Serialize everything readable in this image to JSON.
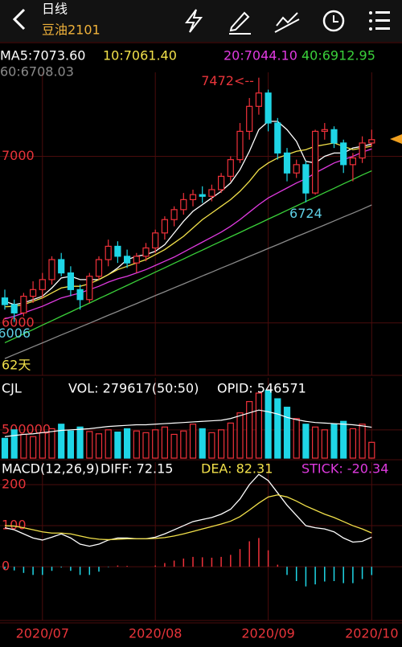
{
  "header": {
    "period": "日线",
    "symbol": "豆油2101"
  },
  "chart_data": [
    {
      "type": "candlestick",
      "categories": [
        null,
        null,
        null,
        null,
        "2020/07",
        null,
        null,
        null,
        null,
        null,
        null,
        null,
        null,
        null,
        null,
        null,
        "2020/08",
        null,
        null,
        null,
        null,
        null,
        null,
        null,
        null,
        null,
        null,
        null,
        "2020/09",
        null,
        null,
        null,
        null,
        null,
        null,
        null,
        null,
        null,
        null,
        "2020/10"
      ],
      "open": [
        6150,
        6110,
        6060,
        6160,
        6200,
        6260,
        6380,
        6300,
        6200,
        6140,
        6280,
        6380,
        6460,
        6400,
        6360,
        6400,
        6450,
        6540,
        6620,
        6680,
        6740,
        6770,
        6760,
        6800,
        6880,
        6980,
        7150,
        7300,
        7380,
        7200,
        7020,
        6900,
        6950,
        6780,
        7150,
        7160,
        7080,
        6950,
        6990,
        7080
      ],
      "high": [
        6200,
        6140,
        6180,
        6250,
        6300,
        6400,
        6420,
        6340,
        6230,
        6300,
        6400,
        6500,
        6490,
        6440,
        6420,
        6480,
        6560,
        6640,
        6700,
        6780,
        6800,
        6820,
        6830,
        6900,
        7000,
        7200,
        7350,
        7472,
        7400,
        7230,
        7050,
        6980,
        6970,
        7160,
        7200,
        7180,
        7100,
        7020,
        7120,
        7160
      ],
      "low": [
        6080,
        6006,
        6040,
        6120,
        6150,
        6230,
        6280,
        6160,
        6080,
        6120,
        6260,
        6340,
        6360,
        6330,
        6300,
        6370,
        6420,
        6500,
        6580,
        6650,
        6700,
        6720,
        6730,
        6780,
        6850,
        6960,
        7100,
        7250,
        7150,
        6980,
        6850,
        6870,
        6724,
        6770,
        7100,
        7050,
        6900,
        6850,
        6960,
        7060
      ],
      "close": [
        6110,
        6060,
        6160,
        6200,
        6260,
        6380,
        6300,
        6200,
        6140,
        6280,
        6380,
        6460,
        6400,
        6360,
        6400,
        6450,
        6540,
        6620,
        6680,
        6740,
        6770,
        6760,
        6800,
        6880,
        6980,
        7150,
        7300,
        7380,
        7200,
        7020,
        6900,
        6950,
        6780,
        7150,
        7160,
        7080,
        6950,
        6990,
        7080,
        7100
      ],
      "high_labels": [
        null,
        null,
        null,
        null,
        null,
        null,
        null,
        null,
        null,
        null,
        null,
        null,
        null,
        null,
        null,
        null,
        null,
        null,
        null,
        null,
        null,
        null,
        null,
        null,
        null,
        null,
        null,
        "7472<--",
        null,
        null,
        null,
        null,
        null,
        null,
        null,
        null,
        null,
        null,
        null,
        null
      ],
      "low_labels": [
        null,
        "6006",
        null,
        null,
        null,
        null,
        null,
        null,
        null,
        null,
        null,
        null,
        null,
        null,
        null,
        null,
        null,
        null,
        null,
        null,
        null,
        null,
        null,
        null,
        null,
        null,
        null,
        null,
        null,
        null,
        null,
        null,
        "6724",
        null,
        null,
        null,
        null,
        null,
        null,
        null
      ],
      "up_color": "#f0313a",
      "down_color": "#1fd6e6",
      "ylim": [
        5695,
        7480
      ],
      "yticks": [
        6000,
        7000
      ],
      "period_label": "62天",
      "series": [
        {
          "name": "MA5:7073.60",
          "color": "#ffffff",
          "values": [
            6130,
            6110,
            6120,
            6140,
            6160,
            6210,
            6270,
            6280,
            6260,
            6260,
            6260,
            6290,
            6330,
            6380,
            6400,
            6410,
            6430,
            6470,
            6540,
            6610,
            6670,
            6710,
            6750,
            6790,
            6840,
            6920,
            7030,
            7160,
            7210,
            7210,
            7160,
            7090,
            6970,
            6960,
            7000,
            7020,
            7020,
            7050,
            7060,
            7073.6
          ]
        },
        {
          "name": "10:7061.40",
          "color": "#f2e14a",
          "values": [
            6097,
            6100,
            6110,
            6130,
            6150,
            6180,
            6210,
            6220,
            6220,
            6235,
            6260,
            6290,
            6320,
            6340,
            6360,
            6380,
            6410,
            6440,
            6480,
            6520,
            6570,
            6620,
            6660,
            6700,
            6740,
            6790,
            6850,
            6920,
            6960,
            6990,
            7010,
            7030,
            7040,
            7060,
            7070,
            7080,
            7060,
            7040,
            7050,
            7061.4
          ]
        },
        {
          "name": "20:7044.10",
          "color": "#e03ae0",
          "values": [
            6025,
            6040,
            6060,
            6080,
            6100,
            6125,
            6150,
            6165,
            6180,
            6200,
            6220,
            6245,
            6265,
            6280,
            6300,
            6320,
            6345,
            6370,
            6395,
            6425,
            6455,
            6485,
            6515,
            6545,
            6580,
            6620,
            6665,
            6710,
            6750,
            6780,
            6810,
            6840,
            6865,
            6900,
            6930,
            6960,
            6980,
            7000,
            7025,
            7044.1
          ]
        },
        {
          "name": "40:6912.95",
          "color": "#3ad13a",
          "values": [
            5881,
            5907,
            5934,
            5960,
            5987,
            6013,
            6040,
            6066,
            6093,
            6119,
            6146,
            6172,
            6199,
            6225,
            6252,
            6278,
            6305,
            6331,
            6358,
            6384,
            6411,
            6437,
            6464,
            6490,
            6517,
            6543,
            6570,
            6596,
            6623,
            6649,
            6676,
            6702,
            6729,
            6755,
            6782,
            6808,
            6835,
            6861,
            6888,
            6912.95
          ]
        },
        {
          "name": "60:6708.03",
          "color": "#8a8a8a",
          "values": [
            5786,
            5810,
            5833,
            5857,
            5880,
            5904,
            5928,
            5951,
            5975,
            5998,
            6022,
            6046,
            6069,
            6093,
            6116,
            6140,
            6164,
            6187,
            6211,
            6234,
            6258,
            6282,
            6305,
            6329,
            6352,
            6376,
            6400,
            6423,
            6447,
            6470,
            6494,
            6518,
            6541,
            6565,
            6588,
            6612,
            6636,
            6659,
            6683,
            6708.03
          ]
        }
      ]
    },
    {
      "type": "bar",
      "title": "CJL",
      "ylim": [
        0,
        1350000
      ],
      "yticks": [
        500000
      ],
      "series": [
        {
          "name": "VOL: 279617(50:50)",
          "type": "bar",
          "color": "#ffffff",
          "values": [
            350000,
            500000,
            420000,
            380000,
            450000,
            520000,
            600000,
            480000,
            550000,
            470000,
            430000,
            500000,
            460000,
            520000,
            480000,
            450000,
            500000,
            550000,
            420000,
            480000,
            600000,
            520000,
            450000,
            500000,
            620000,
            800000,
            1000000,
            1150000,
            1200000,
            1050000,
            900000,
            700000,
            600000,
            550000,
            500000,
            600000,
            650000,
            520000,
            600000,
            279617
          ]
        },
        {
          "name": "OPID: 546571",
          "type": "line",
          "color": "#ffffff",
          "values": [
            380000,
            400000,
            420000,
            430000,
            450000,
            470000,
            490000,
            500000,
            510000,
            520000,
            540000,
            560000,
            570000,
            580000,
            590000,
            590000,
            600000,
            610000,
            620000,
            630000,
            640000,
            650000,
            660000,
            670000,
            700000,
            750000,
            800000,
            850000,
            820000,
            780000,
            720000,
            680000,
            650000,
            630000,
            620000,
            610000,
            600000,
            590000,
            570000,
            546571
          ]
        }
      ]
    },
    {
      "type": "macd",
      "title": "MACD(12,26,9)",
      "ylim": [
        -127,
        245
      ],
      "yticks": [
        0,
        100,
        200
      ],
      "series": [
        {
          "name": "DIFF: 72.15",
          "type": "line",
          "color": "#ffffff",
          "values": [
            95,
            90,
            80,
            70,
            65,
            72,
            80,
            70,
            55,
            50,
            55,
            65,
            70,
            70,
            68,
            68,
            72,
            80,
            90,
            100,
            110,
            115,
            120,
            128,
            140,
            165,
            200,
            225,
            210,
            180,
            150,
            125,
            100,
            95,
            92,
            85,
            70,
            60,
            62,
            72.15
          ]
        },
        {
          "name": "DEA: 82.31",
          "type": "line",
          "color": "#f2e14a",
          "values": [
            100,
            99,
            95,
            90,
            85,
            82,
            82,
            80,
            75,
            70,
            67,
            66,
            67,
            68,
            68,
            68,
            69,
            71,
            75,
            80,
            86,
            92,
            98,
            104,
            111,
            122,
            138,
            155,
            170,
            175,
            170,
            160,
            148,
            138,
            128,
            120,
            110,
            100,
            92,
            82.31
          ]
        },
        {
          "name": "STICK: -20.34",
          "type": "bar",
          "color": "#e03ae0",
          "values": [
            -5,
            -9,
            -15,
            -20,
            -20,
            -10,
            -2,
            -10,
            -20,
            -20,
            -12,
            -1,
            3,
            2,
            0,
            0,
            3,
            9,
            15,
            20,
            24,
            23,
            22,
            24,
            29,
            43,
            62,
            70,
            40,
            5,
            -20,
            -35,
            -48,
            -43,
            -36,
            -35,
            -40,
            -40,
            -30,
            -20.34
          ]
        }
      ]
    }
  ]
}
